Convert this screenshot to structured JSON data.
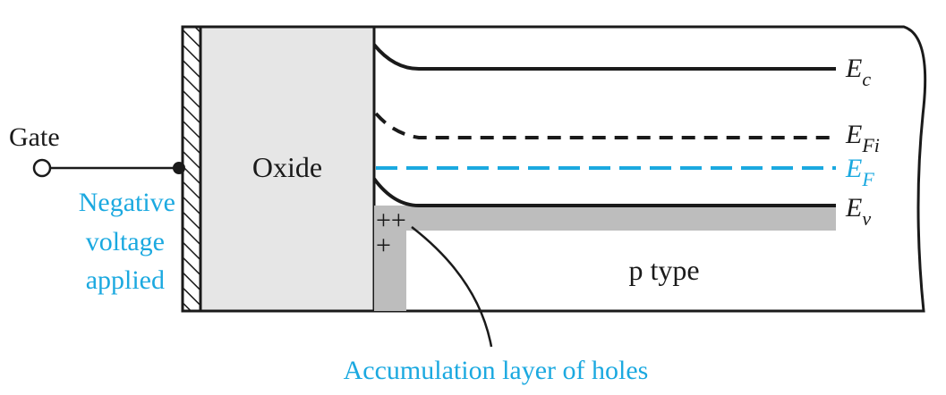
{
  "labels": {
    "gate": "Gate",
    "bias_line1": "Negative",
    "bias_line2": "voltage",
    "bias_line3": "applied",
    "oxide": "Oxide",
    "region": "p type",
    "accumulation": "Accumulation layer of holes",
    "holes_row1": "++",
    "holes_row2": "+"
  },
  "bands": {
    "conduction": {
      "symbol": "E",
      "subscript": "c"
    },
    "intrinsic": {
      "symbol": "E",
      "subscript": "Fi"
    },
    "fermi": {
      "symbol": "E",
      "subscript": "F"
    },
    "valence": {
      "symbol": "E",
      "subscript": "v"
    }
  },
  "colors": {
    "ink": "#1a1a1a",
    "accent": "#1ba9e0",
    "oxide_fill": "#e6e6e6",
    "accumulation_fill": "#bdbdbd"
  }
}
